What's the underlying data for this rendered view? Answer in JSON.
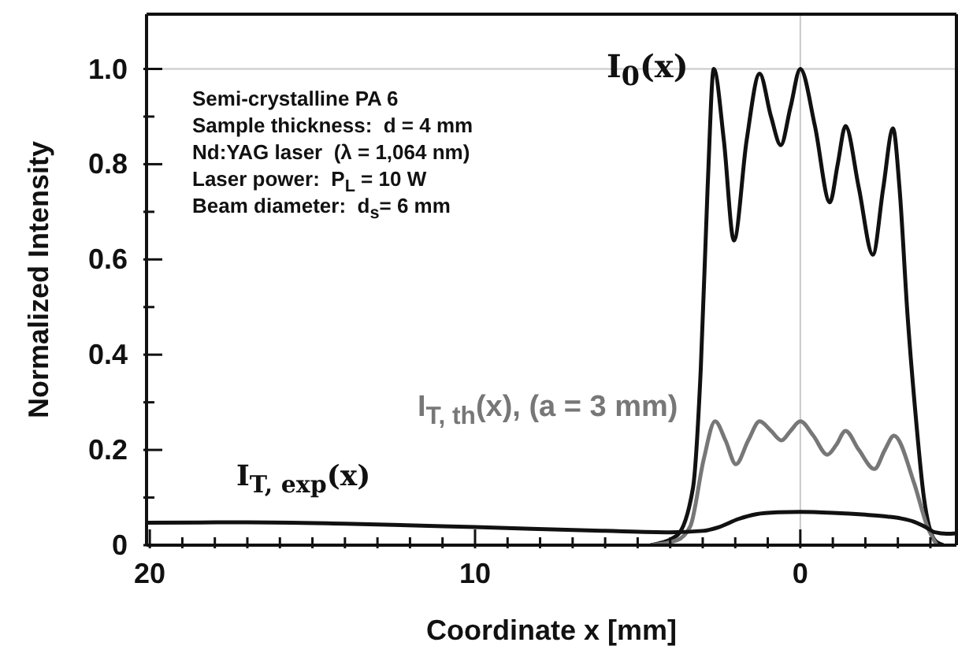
{
  "chart_data": {
    "type": "line",
    "xlabel": "Coordinate x [mm]",
    "ylabel": "Normalized Intensity",
    "xlim": [
      20.1,
      -4.8
    ],
    "ylim": [
      0,
      1.115
    ],
    "xticks": [
      {
        "value": 20,
        "label": "20"
      },
      {
        "value": 19,
        "label": null
      },
      {
        "value": 18,
        "label": null
      },
      {
        "value": 17,
        "label": null
      },
      {
        "value": 16,
        "label": null
      },
      {
        "value": 15,
        "label": null
      },
      {
        "value": 14,
        "label": null
      },
      {
        "value": 13,
        "label": null
      },
      {
        "value": 12,
        "label": null
      },
      {
        "value": 11,
        "label": null
      },
      {
        "value": 10,
        "label": "10"
      },
      {
        "value": 9,
        "label": null
      },
      {
        "value": 8,
        "label": null
      },
      {
        "value": 7,
        "label": null
      },
      {
        "value": 6,
        "label": null
      },
      {
        "value": 5,
        "label": null
      },
      {
        "value": 4,
        "label": null
      },
      {
        "value": 3,
        "label": null
      },
      {
        "value": 2,
        "label": null
      },
      {
        "value": 1,
        "label": null
      },
      {
        "value": 0,
        "label": "0"
      },
      {
        "value": -1,
        "label": null
      },
      {
        "value": -2,
        "label": null
      },
      {
        "value": -3,
        "label": null
      },
      {
        "value": -4,
        "label": null
      }
    ],
    "yticks": [
      0,
      {
        "value": 0.1,
        "label": null
      },
      0.2,
      {
        "value": 0.3,
        "label": null
      },
      0.4,
      {
        "value": 0.5,
        "label": null
      },
      0.6,
      {
        "value": 0.7,
        "label": null
      },
      0.8,
      {
        "value": 0.9,
        "label": null
      },
      {
        "value": 1,
        "label": "1.0"
      }
    ],
    "marker": "none",
    "line_style": "solid",
    "ref_lines": [
      {
        "axis": "x",
        "value": 0,
        "color": "#c8c8c8"
      },
      {
        "axis": "y",
        "value": 1,
        "color": "#c8c8c8"
      }
    ],
    "annotations": [
      "Semi-crystalline PA 6",
      "Sample thickness:  d = 4 mm",
      "Nd:YAG laser  (λ = 1,064 nm)",
      "Laser power:  P$_{L}$ = 10 W",
      "Beam diameter:  d$_{s}$= 6 mm"
    ],
    "series": [
      {
        "name": "I$_{0}$(x)",
        "color": "#111111",
        "x": [
          4.6,
          3.8,
          3.3,
          3.06,
          2.85,
          2.66,
          2.35,
          2.04,
          1.65,
          1.25,
          0.9,
          0.6,
          0.3,
          0,
          -0.45,
          -0.91,
          -1.15,
          -1.39,
          -1.8,
          -2.23,
          -2.55,
          -2.85,
          -3.05,
          -3.3,
          -3.55,
          -3.8,
          -4.14,
          -4.4
        ],
        "values": [
          0,
          0.02,
          0.12,
          0.37,
          0.75,
          1.0,
          0.85,
          0.64,
          0.85,
          0.99,
          0.9,
          0.84,
          0.92,
          1.0,
          0.88,
          0.72,
          0.8,
          0.88,
          0.75,
          0.61,
          0.75,
          0.875,
          0.75,
          0.48,
          0.27,
          0.1,
          0.01,
          0
        ]
      },
      {
        "name": "I$_{T, th}$(x), (a = 3 mm)",
        "color": "#777777",
        "x": [
          4.6,
          3.8,
          3.38,
          2.97,
          2.62,
          2.3,
          1.98,
          1.6,
          1.25,
          0.9,
          0.58,
          0.3,
          0,
          -0.4,
          -0.83,
          -1.1,
          -1.39,
          -1.8,
          -2.28,
          -2.6,
          -2.88,
          -3.5,
          -3.9,
          -4.2
        ],
        "values": [
          0,
          0.01,
          0.04,
          0.18,
          0.26,
          0.22,
          0.17,
          0.22,
          0.26,
          0.24,
          0.22,
          0.24,
          0.26,
          0.23,
          0.19,
          0.21,
          0.24,
          0.2,
          0.16,
          0.2,
          0.23,
          0.13,
          0.04,
          0
        ]
      },
      {
        "name": "I$_{T, exp}$(x)",
        "color": "#111111",
        "x": [
          20.1,
          17,
          14,
          10,
          6,
          4,
          3,
          2.5,
          1.9,
          1.36,
          0.7,
          0,
          -1,
          -2,
          -2.68,
          -3.1,
          -3.5,
          -3.85,
          -4.14,
          -4.5,
          -4.8
        ],
        "values": [
          0.047,
          0.048,
          0.045,
          0.038,
          0.03,
          0.027,
          0.03,
          0.038,
          0.055,
          0.065,
          0.069,
          0.07,
          0.068,
          0.064,
          0.06,
          0.056,
          0.049,
          0.038,
          0.027,
          0.024,
          0.025
        ]
      }
    ]
  }
}
